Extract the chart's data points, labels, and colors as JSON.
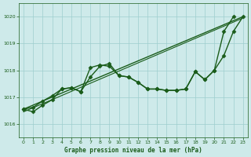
{
  "title": "Graphe pression niveau de la mer (hPa)",
  "bg_color": "#ceeaea",
  "grid_color": "#9ecece",
  "line_color": "#1a5c1a",
  "xlim": [
    -0.5,
    23.5
  ],
  "ylim": [
    1015.5,
    1020.5
  ],
  "yticks": [
    1016,
    1017,
    1018,
    1019,
    1020
  ],
  "xticks": [
    0,
    1,
    2,
    3,
    4,
    5,
    6,
    7,
    8,
    9,
    10,
    11,
    12,
    13,
    14,
    15,
    16,
    17,
    18,
    19,
    20,
    21,
    22,
    23
  ],
  "series": [
    {
      "x": [
        0,
        23
      ],
      "y": [
        1016.55,
        1020.0
      ],
      "marker": null,
      "linewidth": 1.0
    },
    {
      "x": [
        0,
        23
      ],
      "y": [
        1016.45,
        1019.95
      ],
      "marker": null,
      "linewidth": 0.8
    },
    {
      "x": [
        0,
        1,
        2,
        3,
        4,
        5,
        6,
        7,
        8,
        9,
        10,
        11,
        12,
        13,
        14,
        15,
        16,
        17,
        18,
        19,
        20,
        21,
        22
      ],
      "y": [
        1016.55,
        1016.62,
        1016.85,
        1017.05,
        1017.3,
        1017.35,
        1017.2,
        1017.75,
        1018.15,
        1018.25,
        1017.8,
        1017.75,
        1017.55,
        1017.3,
        1017.3,
        1017.25,
        1017.25,
        1017.3,
        1017.95,
        1017.65,
        1018.0,
        1019.45,
        1020.0
      ],
      "marker": "D",
      "markersize": 2.5,
      "linewidth": 1.0
    },
    {
      "x": [
        0,
        1,
        2,
        3,
        4,
        5,
        6,
        7,
        8,
        9,
        10,
        11,
        12,
        13,
        14,
        15,
        16,
        17,
        18,
        19,
        20,
        21,
        22,
        23
      ],
      "y": [
        1016.55,
        1016.45,
        1016.7,
        1016.9,
        1017.3,
        1017.35,
        1017.2,
        1018.1,
        1018.2,
        1018.15,
        1017.8,
        1017.75,
        1017.55,
        1017.3,
        1017.3,
        1017.25,
        1017.25,
        1017.3,
        1017.95,
        1017.65,
        1018.0,
        1018.55,
        1019.45,
        1020.0
      ],
      "marker": "D",
      "markersize": 2.5,
      "linewidth": 1.0
    }
  ]
}
